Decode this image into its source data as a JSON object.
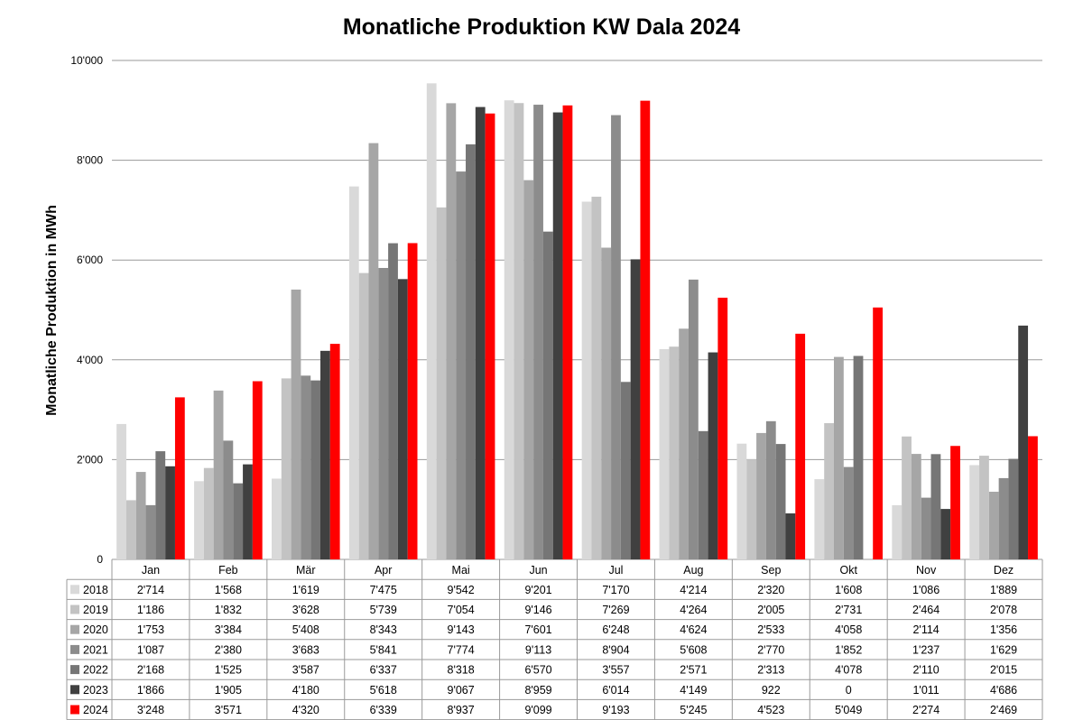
{
  "chart_data": {
    "type": "bar",
    "title": "Monatliche Produktion KW Dala 2024",
    "ylabel": "Monatliche Produktion in MWh",
    "xlabel": "",
    "ylim": [
      0,
      10000
    ],
    "yticks": [
      0,
      2000,
      4000,
      6000,
      8000,
      10000
    ],
    "ytick_labels": [
      "0",
      "2'000",
      "4'000",
      "6'000",
      "8'000",
      "10'000"
    ],
    "grid": true,
    "legend": "data-table-below",
    "categories": [
      "Jan",
      "Feb",
      "Mär",
      "Apr",
      "Mai",
      "Jun",
      "Jul",
      "Aug",
      "Sep",
      "Okt",
      "Nov",
      "Dez"
    ],
    "series": [
      {
        "name": "2018",
        "color": "#d9d9d9",
        "values": [
          2714,
          1568,
          1619,
          7475,
          9542,
          9201,
          7170,
          4214,
          2320,
          1608,
          1086,
          1889
        ],
        "labels": [
          "2'714",
          "1'568",
          "1'619",
          "7'475",
          "9'542",
          "9'201",
          "7'170",
          "4'214",
          "2'320",
          "1'608",
          "1'086",
          "1'889"
        ]
      },
      {
        "name": "2019",
        "color": "#c3c3c3",
        "values": [
          1186,
          1832,
          3628,
          5739,
          7054,
          9146,
          7269,
          4264,
          2005,
          2731,
          2464,
          2078
        ],
        "labels": [
          "1'186",
          "1'832",
          "3'628",
          "5'739",
          "7'054",
          "9'146",
          "7'269",
          "4'264",
          "2'005",
          "2'731",
          "2'464",
          "2'078"
        ]
      },
      {
        "name": "2020",
        "color": "#a6a6a6",
        "values": [
          1753,
          3384,
          5408,
          8343,
          9143,
          7601,
          6248,
          4624,
          2533,
          4058,
          2114,
          1356
        ],
        "labels": [
          "1'753",
          "3'384",
          "5'408",
          "8'343",
          "9'143",
          "7'601",
          "6'248",
          "4'624",
          "2'533",
          "4'058",
          "2'114",
          "1'356"
        ]
      },
      {
        "name": "2021",
        "color": "#8c8c8c",
        "values": [
          1087,
          2380,
          3683,
          5841,
          7774,
          9113,
          8904,
          5608,
          2770,
          1852,
          1237,
          1629
        ],
        "labels": [
          "1'087",
          "2'380",
          "3'683",
          "5'841",
          "7'774",
          "9'113",
          "8'904",
          "5'608",
          "2'770",
          "1'852",
          "1'237",
          "1'629"
        ]
      },
      {
        "name": "2022",
        "color": "#767676",
        "values": [
          2168,
          1525,
          3587,
          6337,
          8318,
          6570,
          3557,
          2571,
          2313,
          4078,
          2110,
          2015
        ],
        "labels": [
          "2'168",
          "1'525",
          "3'587",
          "6'337",
          "8'318",
          "6'570",
          "3'557",
          "2'571",
          "2'313",
          "4'078",
          "2'110",
          "2'015"
        ]
      },
      {
        "name": "2023",
        "color": "#404040",
        "values": [
          1866,
          1905,
          4180,
          5618,
          9067,
          8959,
          6014,
          4149,
          922,
          0,
          1011,
          4686
        ],
        "labels": [
          "1'866",
          "1'905",
          "4'180",
          "5'618",
          "9'067",
          "8'959",
          "6'014",
          "4'149",
          "922",
          "0",
          "1'011",
          "4'686"
        ]
      },
      {
        "name": "2024",
        "color": "#ff0000",
        "values": [
          3248,
          3571,
          4320,
          6339,
          8937,
          9099,
          9193,
          5245,
          4523,
          5049,
          2274,
          2469
        ],
        "labels": [
          "3'248",
          "3'571",
          "4'320",
          "6'339",
          "8'937",
          "9'099",
          "9'193",
          "5'245",
          "4'523",
          "5'049",
          "2'274",
          "2'469"
        ]
      }
    ]
  }
}
